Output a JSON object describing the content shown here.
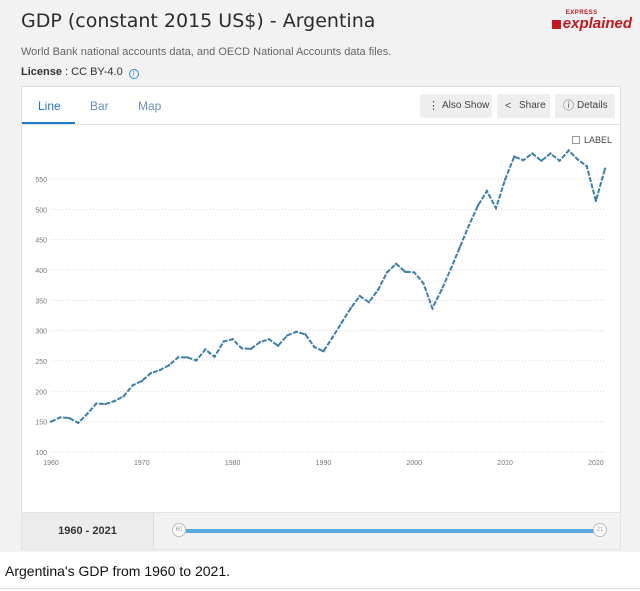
{
  "header": {
    "title": "GDP (constant 2015 US$) - Argentina",
    "description": "World Bank national accounts data, and OECD National Accounts data files.",
    "license_label": "License",
    "license_value": " : CC BY-4.0"
  },
  "brand": {
    "small": "EXPRESS",
    "big": "explained"
  },
  "tabs": [
    {
      "label": "Line"
    },
    {
      "label": "Bar"
    },
    {
      "label": "Map"
    }
  ],
  "buttons": {
    "also_show": "Also Show",
    "share": "Share",
    "details": "Details"
  },
  "label_checkbox": "LABEL",
  "range": {
    "label": "1960 - 2021",
    "handle_left": "60",
    "handle_right": "21"
  },
  "caption": "Argentina's GDP from 1960 to 2021.",
  "colors": {
    "line": "#3d7fa8",
    "accent": "#1f78c8",
    "slider": "#5aa9e0"
  },
  "chart_data": {
    "type": "line",
    "title": "",
    "xlabel": "",
    "ylabel": "",
    "x": [
      1960,
      1961,
      1962,
      1963,
      1964,
      1965,
      1966,
      1967,
      1968,
      1969,
      1970,
      1971,
      1972,
      1973,
      1974,
      1975,
      1976,
      1977,
      1978,
      1979,
      1980,
      1981,
      1982,
      1983,
      1984,
      1985,
      1986,
      1987,
      1988,
      1989,
      1990,
      1991,
      1992,
      1993,
      1994,
      1995,
      1996,
      1997,
      1998,
      1999,
      2000,
      2001,
      2002,
      2003,
      2004,
      2005,
      2006,
      2007,
      2008,
      2009,
      2010,
      2011,
      2012,
      2013,
      2014,
      2015,
      2016,
      2017,
      2018,
      2019,
      2020,
      2021
    ],
    "series": [
      {
        "values": [
          150,
          157,
          156,
          148,
          163,
          180,
          179,
          184,
          192,
          210,
          217,
          230,
          235,
          243,
          256,
          256,
          251,
          269,
          257,
          282,
          286,
          271,
          270,
          281,
          286,
          275,
          292,
          298,
          294,
          273,
          266,
          289,
          313,
          337,
          357,
          347,
          367,
          396,
          410,
          397,
          396,
          378,
          337,
          367,
          401,
          437,
          473,
          506,
          530,
          502,
          549,
          587,
          581,
          592,
          580,
          592,
          580,
          597,
          582,
          571,
          514,
          567
        ]
      }
    ],
    "xlim": [
      1960,
      2021
    ],
    "ylim": [
      100,
      600
    ],
    "yticks": [
      100,
      150,
      200,
      250,
      300,
      350,
      400,
      450,
      500,
      550
    ],
    "xticks": [
      1960,
      1970,
      1980,
      1990,
      2000,
      2010,
      2020
    ],
    "grid": true,
    "legend": "none"
  }
}
